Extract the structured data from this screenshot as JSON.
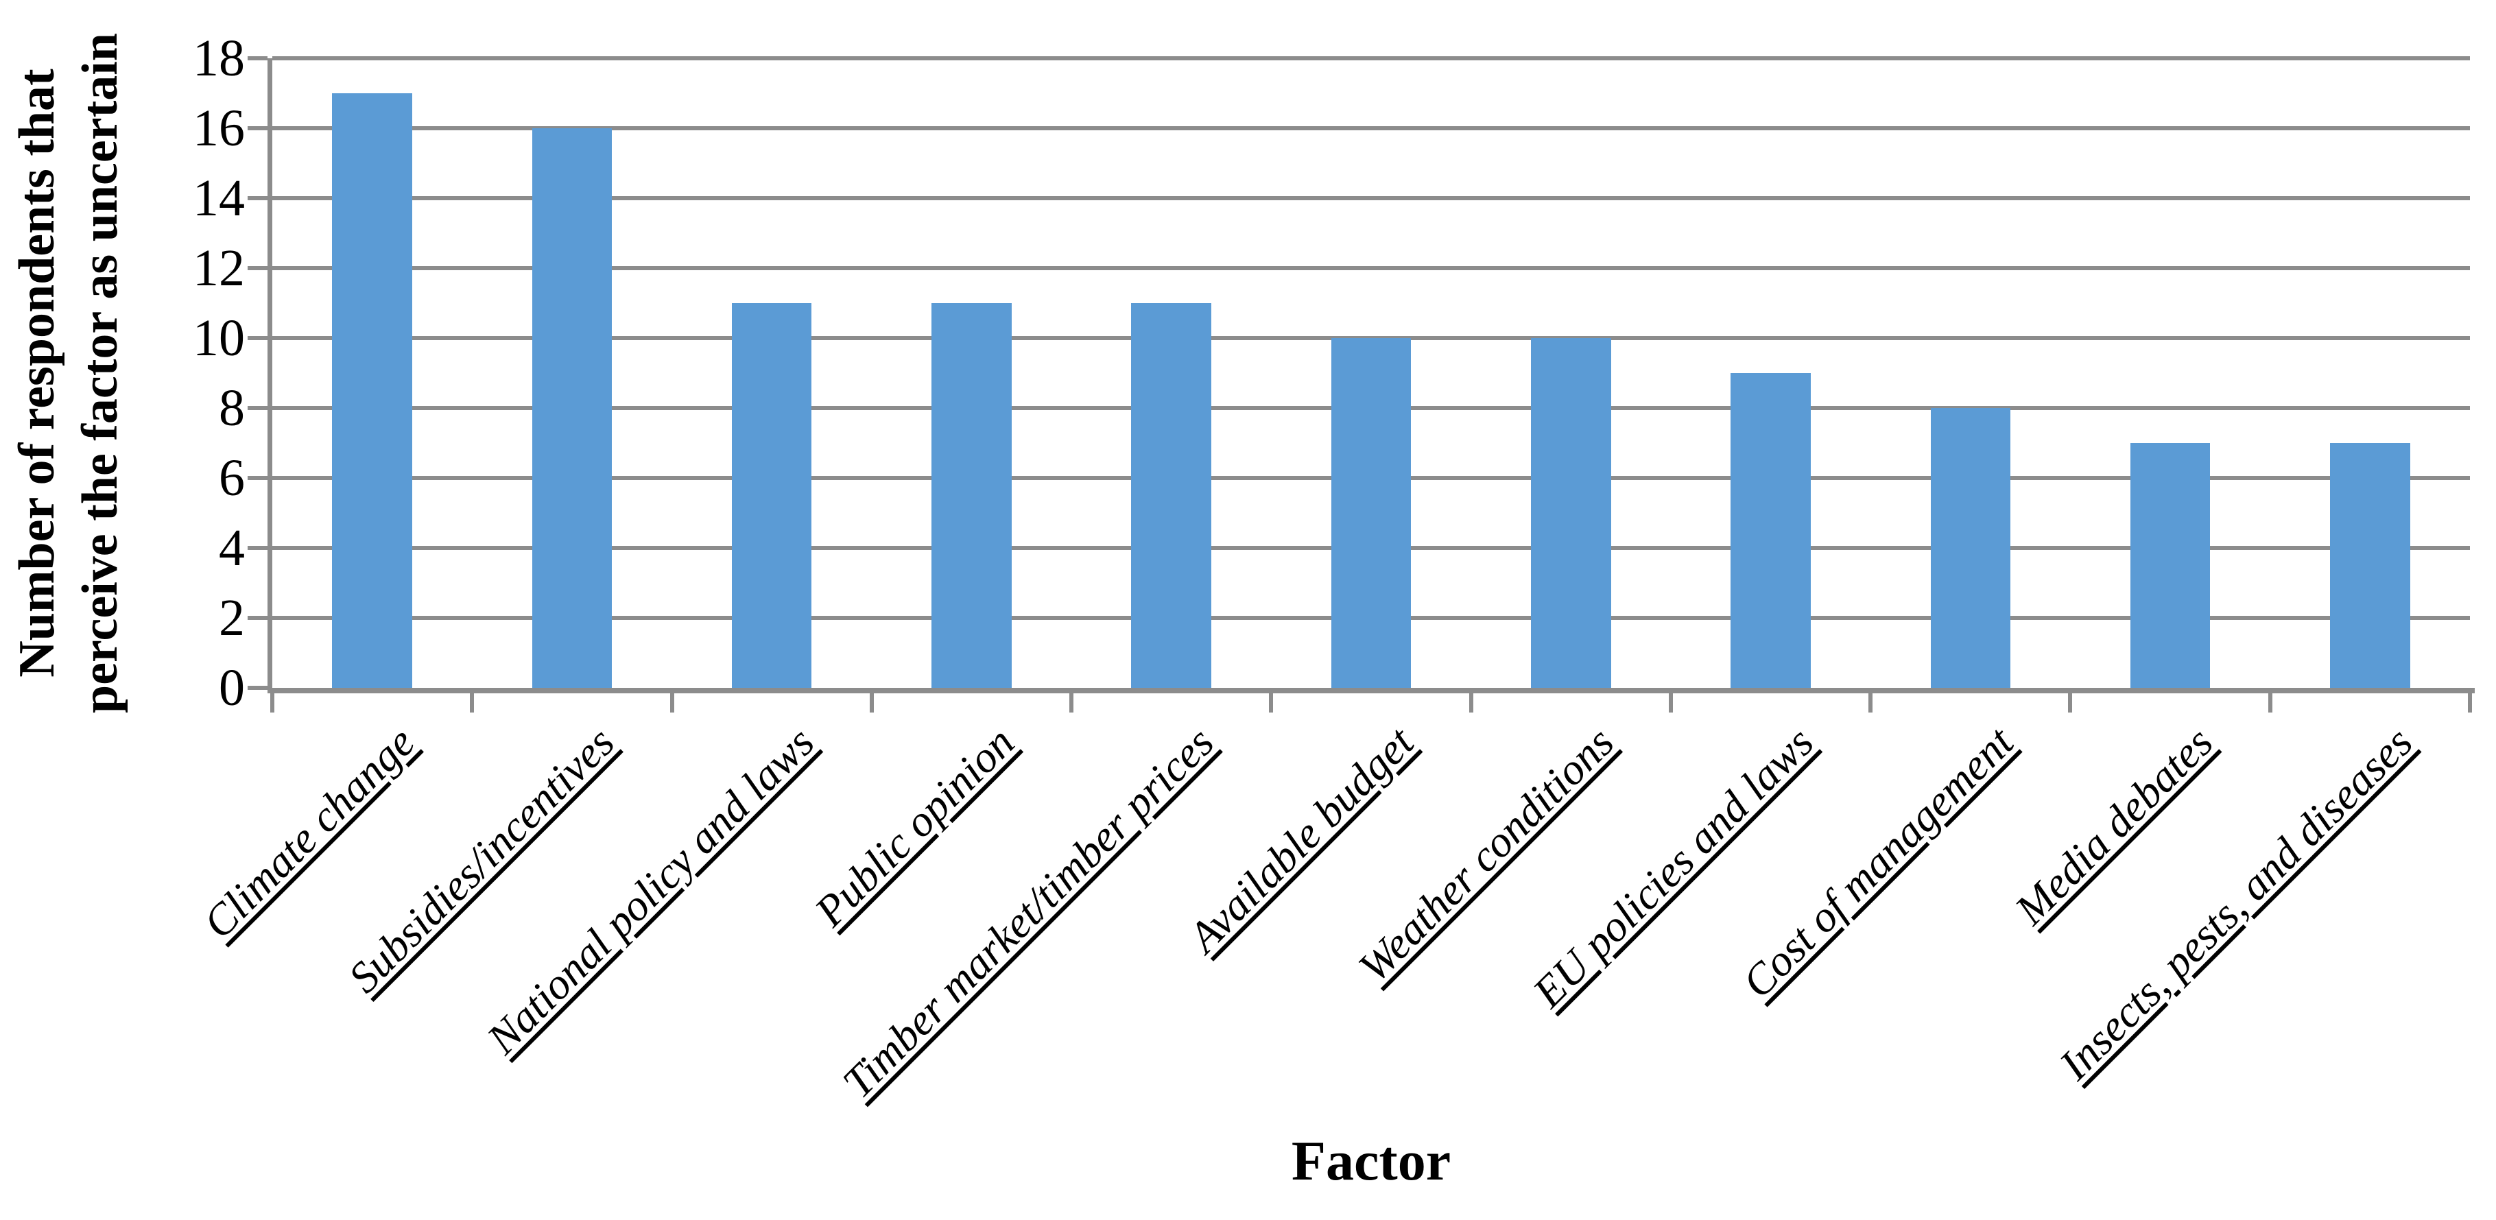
{
  "chart_data": {
    "type": "bar",
    "title": "",
    "categories": [
      "Climate change",
      "Subsidies/incentives",
      "National policy and laws",
      "Public opinion",
      "Timber market/timber prices",
      "Available budget",
      "Weather conditions",
      "EU policies and laws",
      "Cost of management",
      "Media debates",
      "Insects, pests, and diseases"
    ],
    "values": [
      17,
      16,
      11,
      11,
      11,
      10,
      10,
      9,
      8,
      7,
      7
    ],
    "xlabel": "Factor",
    "ylabel": "Number of respondents that perceive the factor as uncertain",
    "ylabel_lines": [
      "Number of respondents that",
      "perceive the factor as uncertain"
    ],
    "ylim": [
      0,
      18
    ],
    "yticks": [
      0,
      2,
      4,
      6,
      8,
      10,
      12,
      14,
      16,
      18
    ],
    "grid": "horizontal-major",
    "legend": "none",
    "colors": {
      "bar": "#5B9BD5",
      "grid": "#8C8C8C",
      "axis": "#8C8C8C",
      "text": "#000000",
      "background": "#FFFFFF"
    }
  }
}
